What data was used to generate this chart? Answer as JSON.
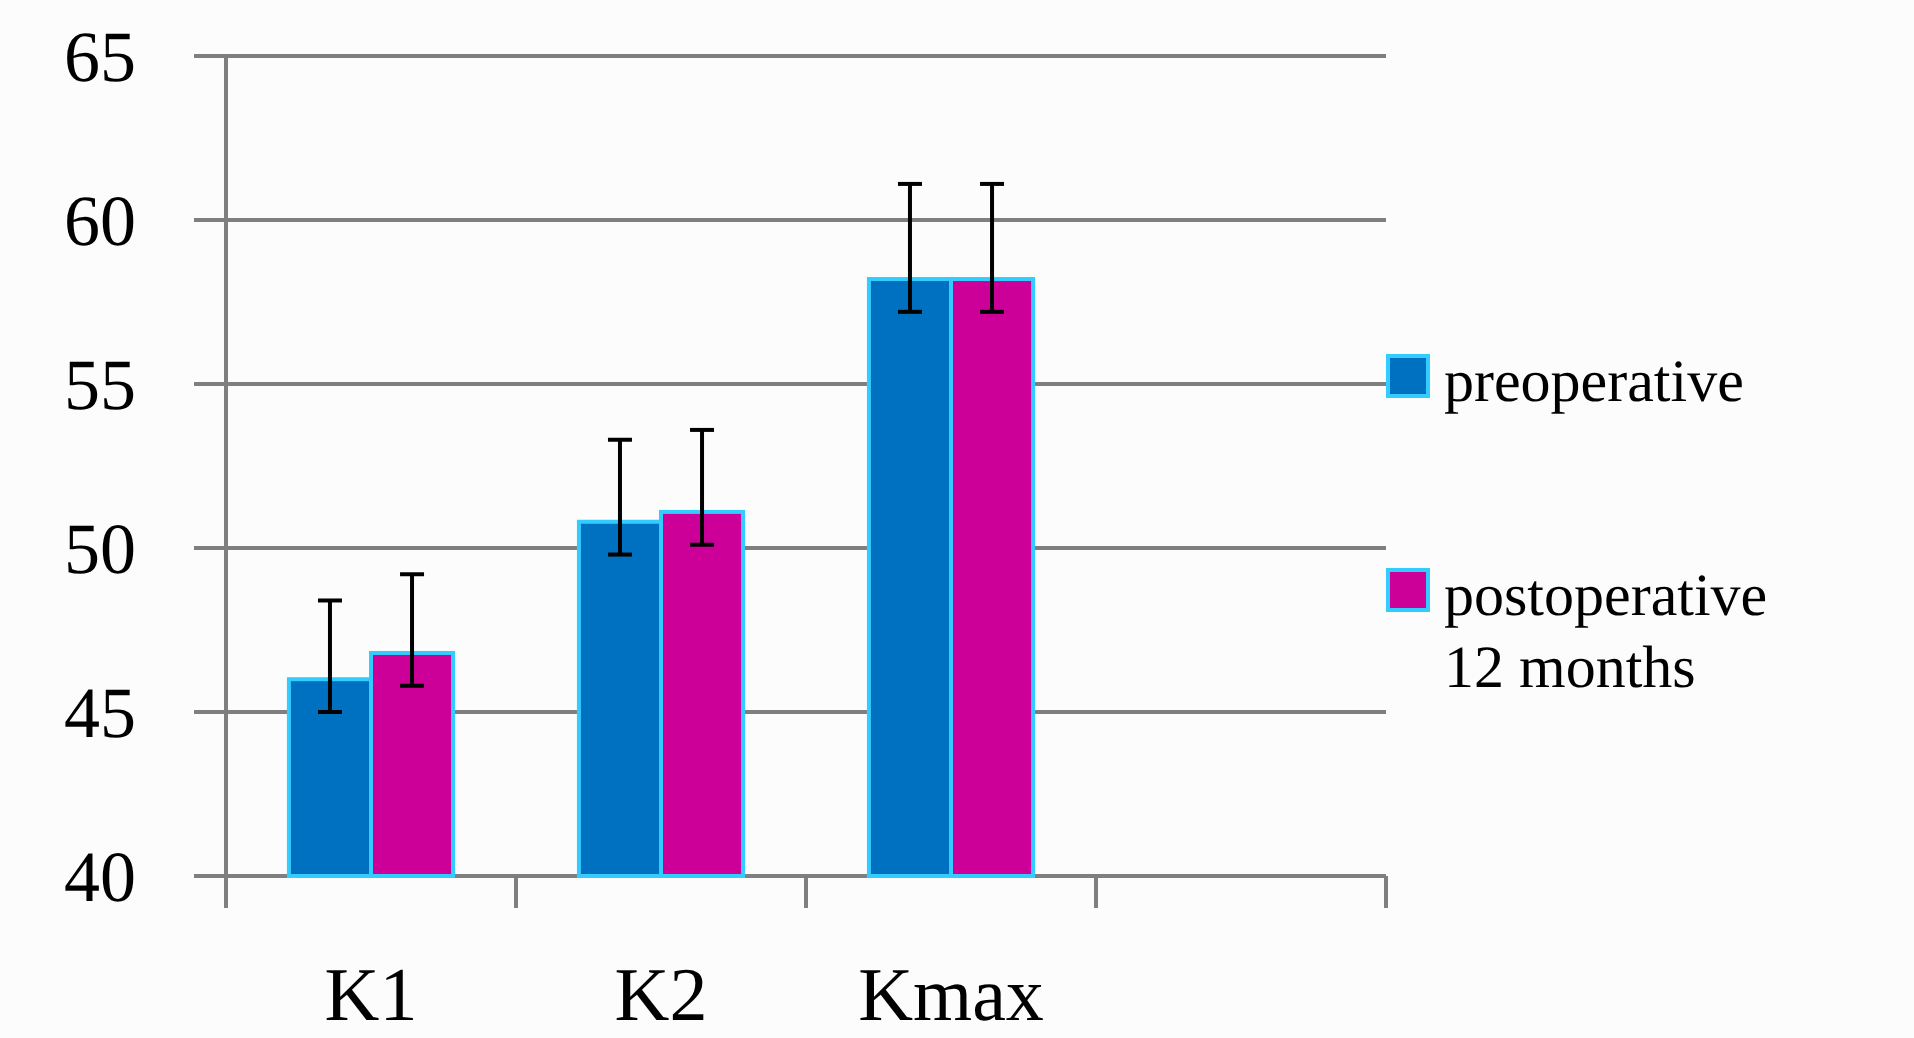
{
  "chart_data": {
    "type": "bar",
    "categories": [
      "K1",
      "K2",
      "Kmax",
      null
    ],
    "series": [
      {
        "name": "preoperative",
        "color": "#0070c0",
        "values": [
          46.0,
          50.8,
          58.2,
          null
        ],
        "errors": [
          [
            45.0,
            48.4
          ],
          [
            49.8,
            53.3
          ],
          [
            57.2,
            61.1
          ],
          null
        ]
      },
      {
        "name": "postoperative 12 months",
        "color": "#cc0099",
        "values": [
          46.8,
          51.1,
          58.2,
          null
        ],
        "errors": [
          [
            45.8,
            49.2
          ],
          [
            50.1,
            53.6
          ],
          [
            57.2,
            61.1
          ],
          null
        ]
      }
    ],
    "ylim": [
      40,
      65
    ],
    "yticks": [
      40,
      45,
      50,
      55,
      60,
      65
    ],
    "grid": "y",
    "legend": "right"
  }
}
